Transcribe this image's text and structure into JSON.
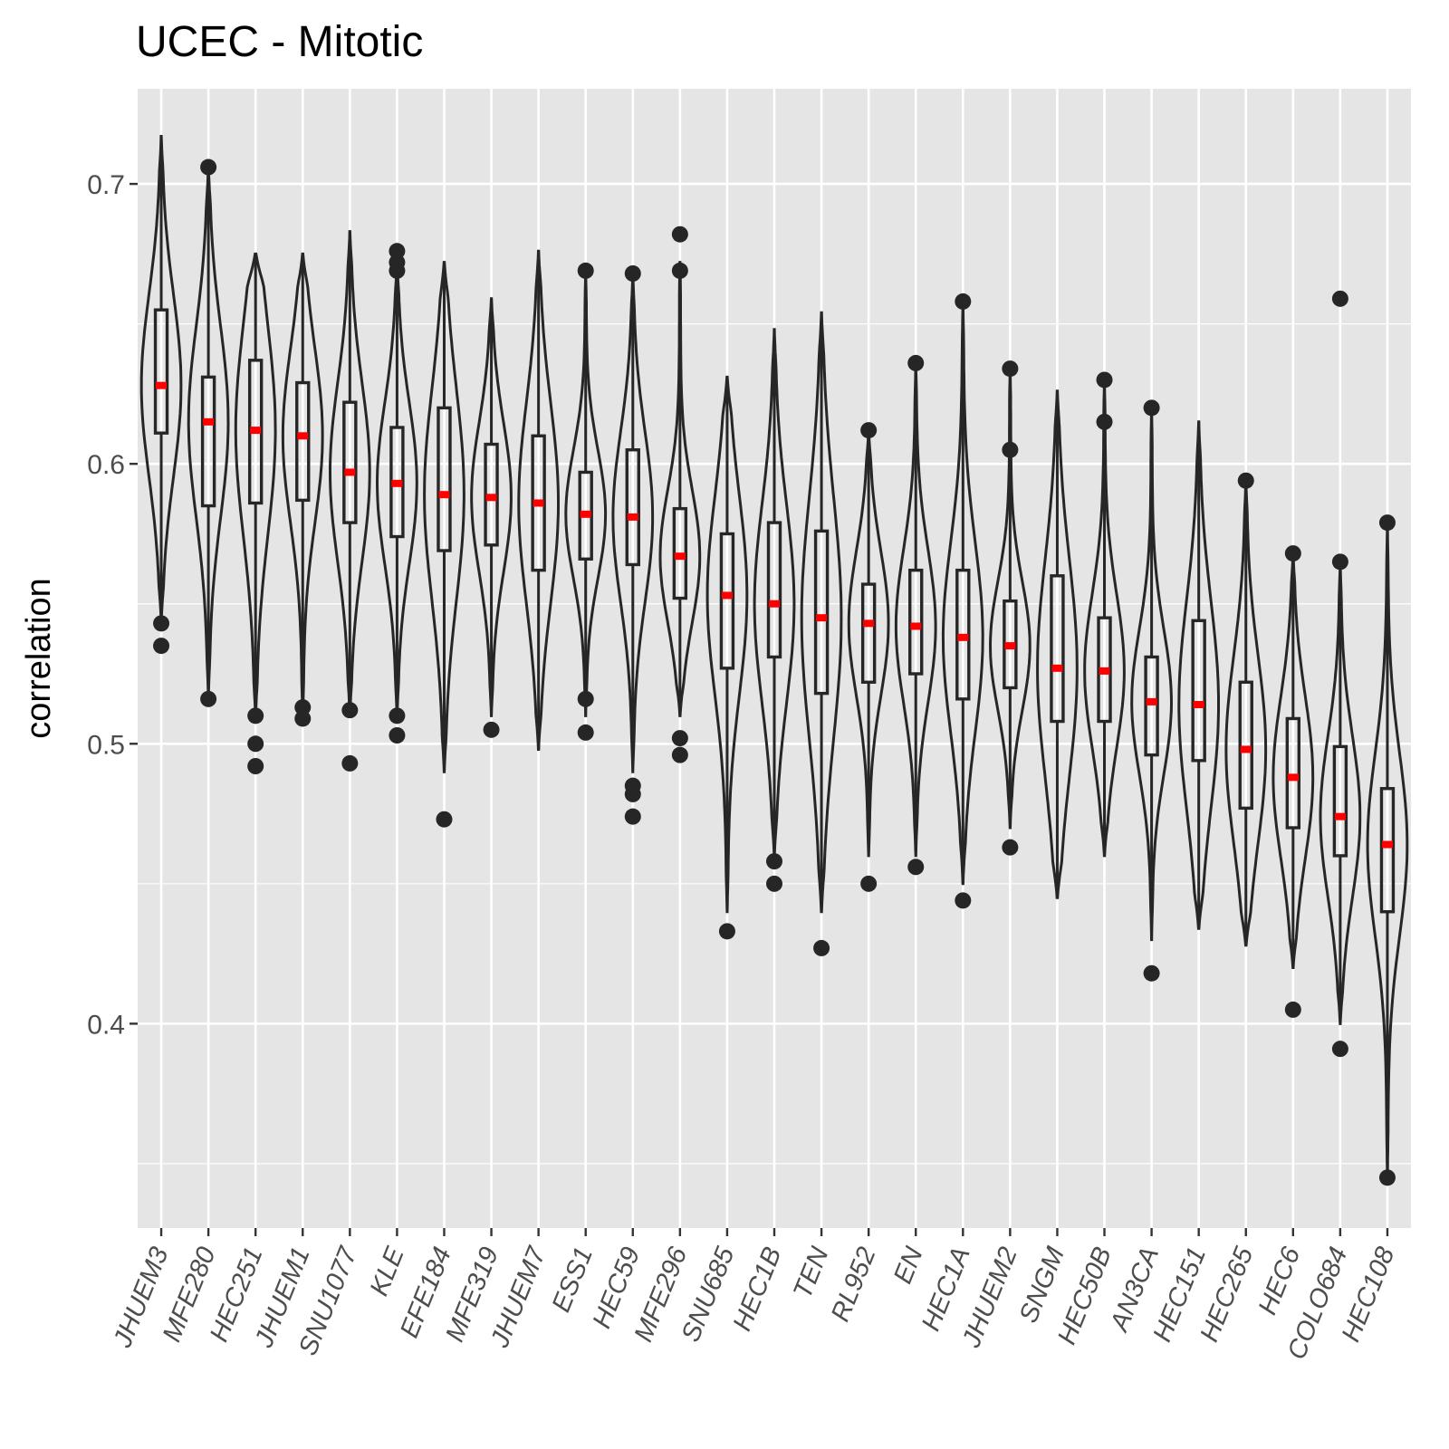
{
  "chart_data": {
    "type": "violin",
    "title": "UCEC - Mitotic",
    "xlabel": "",
    "ylabel": "correlation",
    "ylim": [
      0.327,
      0.734
    ],
    "yticks": [
      0.4,
      0.5,
      0.6,
      0.7
    ],
    "ytick_labels": [
      "0.4",
      "0.5",
      "0.6",
      "0.7"
    ],
    "grid": true,
    "colors": {
      "panel": "#e5e5e5",
      "grid": "#ffffff",
      "outline": "#262626",
      "mean": "#ff0000",
      "tick_text": "#4d4d4d"
    },
    "categories": [
      "JHUEM3",
      "MFE280",
      "HEC251",
      "JHUEM1",
      "SNU1077",
      "KLE",
      "EFE184",
      "MFE319",
      "JHUEM7",
      "ESS1",
      "HEC59",
      "MFE296",
      "SNU685",
      "HEC1B",
      "TEN",
      "RL952",
      "EN",
      "HEC1A",
      "JHUEM2",
      "SNGM",
      "HEC50B",
      "AN3CA",
      "HEC151",
      "HEC265",
      "HEC6",
      "COLO684",
      "HEC108"
    ],
    "series": [
      {
        "min": 0.544,
        "max": 0.717,
        "q1": 0.611,
        "q3": 0.655,
        "median": 0.628,
        "mean": 0.628,
        "outliers": [
          0.543,
          0.535
        ]
      },
      {
        "min": 0.517,
        "max": 0.706,
        "q1": 0.585,
        "q3": 0.631,
        "median": 0.615,
        "mean": 0.615,
        "outliers": [
          0.706,
          0.516
        ]
      },
      {
        "min": 0.51,
        "max": 0.675,
        "q1": 0.586,
        "q3": 0.637,
        "median": 0.612,
        "mean": 0.612,
        "outliers": [
          0.51,
          0.5,
          0.492
        ]
      },
      {
        "min": 0.51,
        "max": 0.675,
        "q1": 0.587,
        "q3": 0.629,
        "median": 0.61,
        "mean": 0.61,
        "outliers": [
          0.513,
          0.509
        ]
      },
      {
        "min": 0.51,
        "max": 0.683,
        "q1": 0.579,
        "q3": 0.622,
        "median": 0.597,
        "mean": 0.597,
        "outliers": [
          0.512,
          0.493
        ]
      },
      {
        "min": 0.51,
        "max": 0.672,
        "q1": 0.574,
        "q3": 0.613,
        "median": 0.593,
        "mean": 0.593,
        "outliers": [
          0.676,
          0.672,
          0.669,
          0.51,
          0.503
        ]
      },
      {
        "min": 0.49,
        "max": 0.672,
        "q1": 0.569,
        "q3": 0.62,
        "median": 0.589,
        "mean": 0.589,
        "outliers": [
          0.473
        ]
      },
      {
        "min": 0.51,
        "max": 0.659,
        "q1": 0.571,
        "q3": 0.607,
        "median": 0.588,
        "mean": 0.588,
        "outliers": [
          0.505
        ]
      },
      {
        "min": 0.498,
        "max": 0.676,
        "q1": 0.562,
        "q3": 0.61,
        "median": 0.586,
        "mean": 0.586,
        "outliers": []
      },
      {
        "min": 0.51,
        "max": 0.669,
        "q1": 0.566,
        "q3": 0.597,
        "median": 0.582,
        "mean": 0.582,
        "outliers": [
          0.669,
          0.516,
          0.504
        ]
      },
      {
        "min": 0.49,
        "max": 0.668,
        "q1": 0.564,
        "q3": 0.605,
        "median": 0.581,
        "mean": 0.581,
        "outliers": [
          0.668,
          0.485,
          0.482,
          0.474
        ]
      },
      {
        "min": 0.51,
        "max": 0.672,
        "q1": 0.552,
        "q3": 0.584,
        "median": 0.567,
        "mean": 0.567,
        "outliers": [
          0.682,
          0.669,
          0.502,
          0.496
        ]
      },
      {
        "min": 0.44,
        "max": 0.631,
        "q1": 0.527,
        "q3": 0.575,
        "median": 0.553,
        "mean": 0.553,
        "outliers": [
          0.433
        ]
      },
      {
        "min": 0.46,
        "max": 0.648,
        "q1": 0.531,
        "q3": 0.579,
        "median": 0.55,
        "mean": 0.55,
        "outliers": [
          0.458,
          0.45
        ]
      },
      {
        "min": 0.44,
        "max": 0.654,
        "q1": 0.518,
        "q3": 0.576,
        "median": 0.545,
        "mean": 0.545,
        "outliers": [
          0.427
        ]
      },
      {
        "min": 0.46,
        "max": 0.612,
        "q1": 0.522,
        "q3": 0.557,
        "median": 0.543,
        "mean": 0.543,
        "outliers": [
          0.612,
          0.45
        ]
      },
      {
        "min": 0.46,
        "max": 0.636,
        "q1": 0.525,
        "q3": 0.562,
        "median": 0.542,
        "mean": 0.542,
        "outliers": [
          0.636,
          0.456
        ]
      },
      {
        "min": 0.45,
        "max": 0.658,
        "q1": 0.516,
        "q3": 0.562,
        "median": 0.538,
        "mean": 0.538,
        "outliers": [
          0.658,
          0.444
        ]
      },
      {
        "min": 0.47,
        "max": 0.634,
        "q1": 0.52,
        "q3": 0.551,
        "median": 0.535,
        "mean": 0.535,
        "outliers": [
          0.634,
          0.605,
          0.463
        ]
      },
      {
        "min": 0.445,
        "max": 0.626,
        "q1": 0.508,
        "q3": 0.56,
        "median": 0.527,
        "mean": 0.527,
        "outliers": []
      },
      {
        "min": 0.46,
        "max": 0.63,
        "q1": 0.508,
        "q3": 0.545,
        "median": 0.526,
        "mean": 0.526,
        "outliers": [
          0.63,
          0.615
        ]
      },
      {
        "min": 0.43,
        "max": 0.62,
        "q1": 0.496,
        "q3": 0.531,
        "median": 0.515,
        "mean": 0.515,
        "outliers": [
          0.62,
          0.418
        ]
      },
      {
        "min": 0.434,
        "max": 0.615,
        "q1": 0.494,
        "q3": 0.544,
        "median": 0.514,
        "mean": 0.514,
        "outliers": []
      },
      {
        "min": 0.428,
        "max": 0.594,
        "q1": 0.477,
        "q3": 0.522,
        "median": 0.498,
        "mean": 0.498,
        "outliers": [
          0.594
        ]
      },
      {
        "min": 0.42,
        "max": 0.568,
        "q1": 0.47,
        "q3": 0.509,
        "median": 0.488,
        "mean": 0.488,
        "outliers": [
          0.568,
          0.405
        ]
      },
      {
        "min": 0.4,
        "max": 0.565,
        "q1": 0.46,
        "q3": 0.499,
        "median": 0.474,
        "mean": 0.474,
        "outliers": [
          0.659,
          0.565,
          0.391
        ]
      },
      {
        "min": 0.345,
        "max": 0.579,
        "q1": 0.44,
        "q3": 0.484,
        "median": 0.464,
        "mean": 0.464,
        "outliers": [
          0.579,
          0.345
        ]
      }
    ]
  }
}
